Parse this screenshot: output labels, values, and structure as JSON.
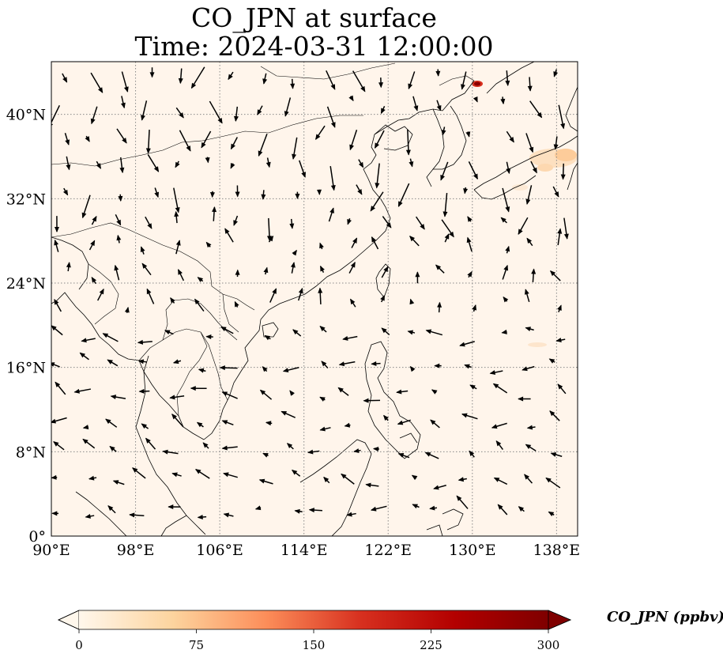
{
  "title": {
    "line1": "CO_JPN at surface",
    "line2": "Time: 2024-03-31 12:00:00"
  },
  "map": {
    "projection": "PlateCarree",
    "lon_range": [
      90,
      140
    ],
    "lat_range": [
      0,
      45
    ],
    "gridlines": true,
    "lon_ticks": [
      {
        "value": 90,
        "label": "90°E"
      },
      {
        "value": 98,
        "label": "98°E"
      },
      {
        "value": 106,
        "label": "106°E"
      },
      {
        "value": 114,
        "label": "114°E"
      },
      {
        "value": 122,
        "label": "122°E"
      },
      {
        "value": 130,
        "label": "130°E"
      },
      {
        "value": 138,
        "label": "138°E"
      }
    ],
    "lat_ticks": [
      {
        "value": 0,
        "label": "0°"
      },
      {
        "value": 8,
        "label": "8°N"
      },
      {
        "value": 16,
        "label": "16°N"
      },
      {
        "value": 24,
        "label": "24°N"
      },
      {
        "value": 32,
        "label": "32°N"
      },
      {
        "value": 40,
        "label": "40°N"
      }
    ],
    "background_color": "#fff5eb",
    "coast_color": "#000000",
    "arrow_color": "#000000"
  },
  "colorbar": {
    "label": "CO_JPN (ppbv)",
    "min": 0,
    "max": 300,
    "extend": "both",
    "colormap": "OrRd",
    "stops": [
      "#fff7ec",
      "#fdd49e",
      "#fc8d59",
      "#d7301f",
      "#b30000",
      "#7f0000"
    ],
    "ticks": [
      {
        "value": 0,
        "label": "0"
      },
      {
        "value": 75,
        "label": "75"
      },
      {
        "value": 150,
        "label": "150"
      },
      {
        "value": 225,
        "label": "225"
      },
      {
        "value": 300,
        "label": "300"
      }
    ]
  }
}
